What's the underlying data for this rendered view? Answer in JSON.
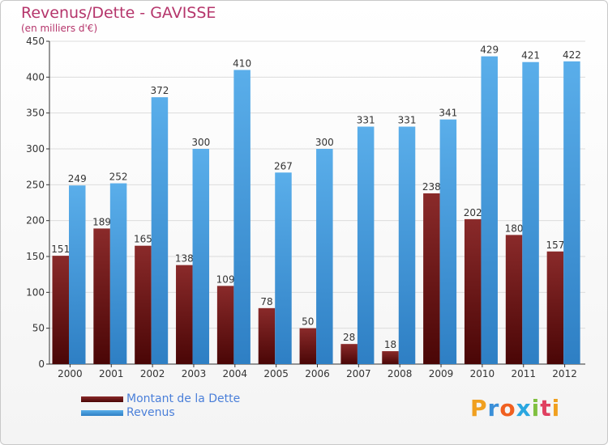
{
  "title": "Revenus/Dette - GAVISSE",
  "subtitle": "(en milliers d'€)",
  "logo": {
    "text": "Proxiti",
    "letter_colors": [
      "#f0a020",
      "#3a8fd8",
      "#f06020",
      "#2aa7e0",
      "#80c040",
      "#e04060",
      "#f0a020"
    ]
  },
  "colors": {
    "dette": "#7a1a1a",
    "revenus": "#4a9fe0",
    "axis": "#333333"
  },
  "chart_data": {
    "type": "bar",
    "categories": [
      "2000",
      "2001",
      "2002",
      "2003",
      "2004",
      "2005",
      "2006",
      "2007",
      "2008",
      "2009",
      "2010",
      "2011",
      "2012"
    ],
    "series": [
      {
        "name": "Montant de la Dette",
        "values": [
          151,
          189,
          165,
          138,
          109,
          78,
          50,
          28,
          18,
          238,
          202,
          180,
          157
        ]
      },
      {
        "name": "Revenus",
        "values": [
          249,
          252,
          372,
          300,
          410,
          267,
          300,
          331,
          331,
          341,
          429,
          421,
          422
        ]
      }
    ],
    "ylim": [
      0,
      450
    ],
    "yticks": [
      0,
      50,
      100,
      150,
      200,
      250,
      300,
      350,
      400,
      450
    ],
    "grid": true,
    "legend_position": "bottom-left"
  }
}
